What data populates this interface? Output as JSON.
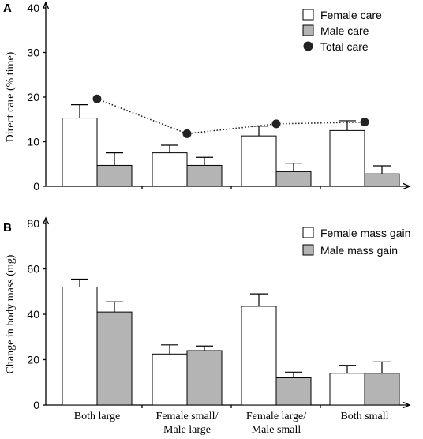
{
  "chart_data": [
    {
      "panel": "A",
      "type": "bar",
      "ylabel": "Direct care (% time)",
      "ylim": [
        0,
        40
      ],
      "yticks": [
        0,
        10,
        20,
        30,
        40
      ],
      "legend_position": "top-right",
      "categories": [
        "Both large",
        "Female small/ Male large",
        "Female large/ Male small",
        "Both small"
      ],
      "series": [
        {
          "name": "Female care",
          "kind": "bar",
          "color": "#ffffff",
          "values": [
            15.3,
            7.5,
            11.3,
            12.5
          ],
          "errors": [
            3.0,
            1.7,
            2.2,
            2.2
          ]
        },
        {
          "name": "Male care",
          "kind": "bar",
          "color": "#b4b4b4",
          "values": [
            4.7,
            4.7,
            3.3,
            2.8
          ],
          "errors": [
            2.8,
            1.8,
            1.9,
            1.8
          ]
        },
        {
          "name": "Total care",
          "kind": "line-dotted",
          "color": "#222222",
          "values": [
            19.6,
            11.8,
            14.0,
            14.4
          ]
        }
      ]
    },
    {
      "panel": "B",
      "type": "bar",
      "ylabel": "Change in body mass (mg)",
      "ylim": [
        0,
        80
      ],
      "yticks": [
        0,
        20,
        40,
        60,
        80
      ],
      "legend_position": "top-right",
      "categories": [
        "Both large",
        "Female small/ Male large",
        "Female large/ Male small",
        "Both small"
      ],
      "category_lines": [
        [
          "Both large"
        ],
        [
          "Female small/",
          "Male large"
        ],
        [
          "Female large/",
          "Male small"
        ],
        [
          "Both small"
        ]
      ],
      "series": [
        {
          "name": "Female mass gain",
          "kind": "bar",
          "color": "#ffffff",
          "values": [
            52,
            22.5,
            43.5,
            14
          ],
          "errors": [
            3.5,
            4.0,
            5.5,
            3.5
          ]
        },
        {
          "name": "Male mass gain",
          "kind": "bar",
          "color": "#b4b4b4",
          "values": [
            41,
            24,
            12,
            14
          ],
          "errors": [
            4.5,
            2.0,
            2.5,
            5.0
          ]
        }
      ]
    }
  ]
}
